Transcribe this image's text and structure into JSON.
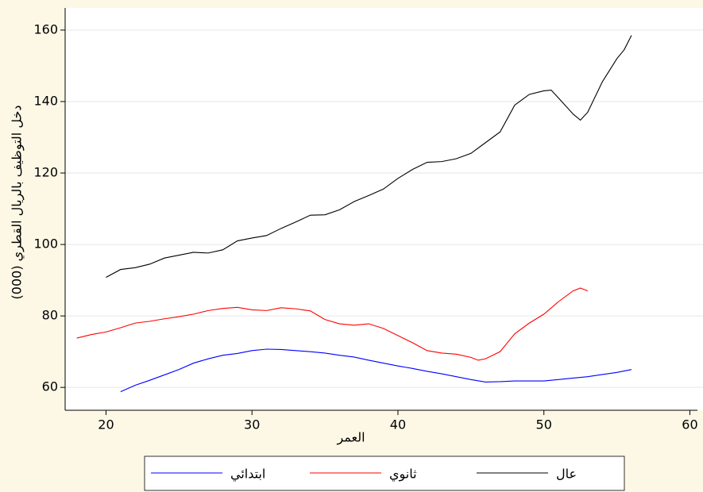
{
  "chart_data": {
    "type": "line",
    "x_label": "العمر",
    "y_label": "دخل التوظيف بالريال القطري (000)",
    "xlim": [
      17.2,
      60.9
    ],
    "xticks": [
      20,
      30,
      40,
      50,
      60
    ],
    "ylim": [
      53.6,
      166.2
    ],
    "yticks": [
      60,
      80,
      100,
      120,
      140,
      160
    ],
    "grid": true,
    "series": [
      {
        "name": "ابتدائي",
        "color": "#0000ff",
        "x": [
          21,
          22,
          23,
          24,
          25,
          26,
          27,
          28,
          29,
          30,
          31,
          32,
          33,
          34,
          35,
          36,
          37,
          38,
          39,
          40,
          41,
          42,
          43,
          44,
          45,
          46,
          47,
          48,
          49,
          50,
          51,
          52,
          53,
          54,
          55,
          56
        ],
        "values": [
          58.8,
          60.6,
          62,
          63.5,
          65,
          66.8,
          68,
          69,
          69.5,
          70.3,
          70.7,
          70.6,
          70.3,
          70,
          69.6,
          69,
          68.5,
          67.6,
          66.8,
          66,
          65.3,
          64.5,
          63.8,
          63,
          62.2,
          61.5,
          61.6,
          61.8,
          61.8,
          61.8,
          62.2,
          62.6,
          63,
          63.6,
          64.2,
          65
        ]
      },
      {
        "name": "ثانوي",
        "color": "#ff0000",
        "x": [
          18,
          19,
          20,
          21,
          22,
          23,
          24,
          25,
          26,
          27,
          28,
          29,
          30,
          31,
          32,
          33,
          34,
          35,
          36,
          37,
          38,
          39,
          40,
          41,
          42,
          43,
          44,
          45,
          45.5,
          46,
          47,
          48,
          49,
          50,
          51,
          52,
          52.5,
          53
        ],
        "values": [
          73.8,
          74.8,
          75.5,
          76.7,
          78,
          78.5,
          79.2,
          79.8,
          80.5,
          81.5,
          82.1,
          82.4,
          81.7,
          81.5,
          82.3,
          82,
          81.4,
          79,
          77.8,
          77.4,
          77.8,
          76.5,
          74.5,
          72.5,
          70.3,
          69.6,
          69.3,
          68.4,
          67.6,
          68,
          70,
          75,
          78,
          80.5,
          84,
          87,
          87.8,
          87
        ]
      },
      {
        "name": "عال",
        "color": "#000000",
        "x": [
          20,
          21,
          22,
          23,
          24,
          25,
          26,
          27,
          28,
          29,
          30,
          31,
          32,
          33,
          34,
          35,
          36,
          37,
          38,
          39,
          40,
          41,
          42,
          43,
          44,
          45,
          46,
          47,
          48,
          49,
          50,
          50.5,
          51,
          52,
          52.5,
          53,
          54,
          55,
          55.5,
          56
        ],
        "values": [
          90.8,
          93,
          93.5,
          94.5,
          96.2,
          97,
          97.8,
          97.6,
          98.5,
          101,
          101.8,
          102.5,
          104.5,
          106.3,
          108.2,
          108.3,
          109.7,
          112,
          113.7,
          115.5,
          118.5,
          121,
          123,
          123.2,
          124,
          125.5,
          128.5,
          131.5,
          139,
          142,
          143,
          143.2,
          141,
          136.5,
          134.8,
          137,
          145.5,
          152,
          154.5,
          158.5
        ]
      }
    ]
  }
}
